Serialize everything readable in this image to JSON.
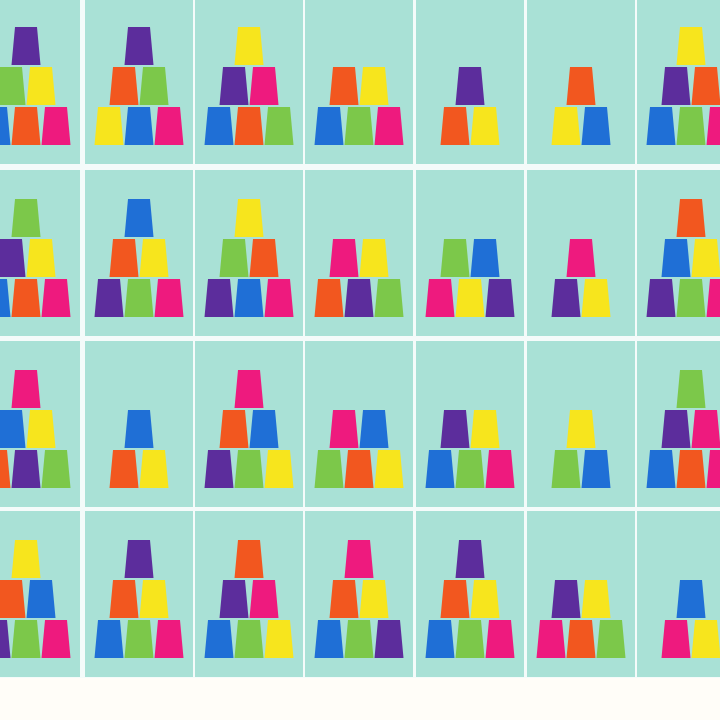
{
  "background": "#a9e1d6",
  "gap_color": "#f4fbfa",
  "cards": [
    [
      [
        "#1f6fd6",
        "#f2571f",
        "#ee1a7e"
      ],
      [
        "#7cc84a",
        "#f7e51d"
      ],
      [
        "#5c2d9c"
      ]
    ],
    [
      [
        "#f7e51d",
        "#1f6fd6",
        "#ee1a7e"
      ],
      [
        "#f2571f",
        "#7cc84a"
      ],
      [
        "#5c2d9c"
      ]
    ],
    [
      [
        "#1f6fd6",
        "#f2571f",
        "#7cc84a"
      ],
      [
        "#5c2d9c",
        "#ee1a7e"
      ],
      [
        "#f7e51d"
      ]
    ],
    [
      [
        "#1f6fd6",
        "#7cc84a",
        "#ee1a7e"
      ],
      [
        "#f2571f",
        "#f7e51d"
      ]
    ],
    [
      [
        "#f2571f",
        "#f7e51d"
      ],
      [
        "#5c2d9c"
      ]
    ],
    [
      [
        "#f7e51d",
        "#1f6fd6"
      ],
      [
        "#f2571f"
      ]
    ],
    [
      [
        "#1f6fd6",
        "#7cc84a",
        "#ee1a7e"
      ],
      [
        "#5c2d9c",
        "#f2571f"
      ],
      [
        "#f7e51d"
      ]
    ],
    [
      [
        "#1f6fd6",
        "#f2571f",
        "#ee1a7e"
      ],
      [
        "#5c2d9c",
        "#f7e51d"
      ],
      [
        "#7cc84a"
      ]
    ],
    [
      [
        "#5c2d9c",
        "#7cc84a",
        "#ee1a7e"
      ],
      [
        "#f2571f",
        "#f7e51d"
      ],
      [
        "#1f6fd6"
      ]
    ],
    [
      [
        "#5c2d9c",
        "#1f6fd6",
        "#ee1a7e"
      ],
      [
        "#7cc84a",
        "#f2571f"
      ],
      [
        "#f7e51d"
      ]
    ],
    [
      [
        "#f2571f",
        "#5c2d9c",
        "#7cc84a"
      ],
      [
        "#ee1a7e",
        "#f7e51d"
      ]
    ],
    [
      [
        "#ee1a7e",
        "#f7e51d",
        "#5c2d9c"
      ],
      [
        "#7cc84a",
        "#1f6fd6"
      ]
    ],
    [
      [
        "#5c2d9c",
        "#f7e51d"
      ],
      [
        "#ee1a7e"
      ]
    ],
    [
      [
        "#5c2d9c",
        "#7cc84a",
        "#ee1a7e"
      ],
      [
        "#1f6fd6",
        "#f7e51d"
      ],
      [
        "#f2571f"
      ]
    ],
    [
      [
        "#f2571f",
        "#5c2d9c",
        "#7cc84a"
      ],
      [
        "#1f6fd6",
        "#f7e51d"
      ],
      [
        "#ee1a7e"
      ]
    ],
    [
      [
        "#f2571f",
        "#f7e51d"
      ],
      [
        "#1f6fd6"
      ]
    ],
    [
      [
        "#5c2d9c",
        "#7cc84a",
        "#f7e51d"
      ],
      [
        "#f2571f",
        "#1f6fd6"
      ],
      [
        "#ee1a7e"
      ]
    ],
    [
      [
        "#7cc84a",
        "#f2571f",
        "#f7e51d"
      ],
      [
        "#ee1a7e",
        "#1f6fd6"
      ]
    ],
    [
      [
        "#1f6fd6",
        "#7cc84a",
        "#ee1a7e"
      ],
      [
        "#5c2d9c",
        "#f7e51d"
      ]
    ],
    [
      [
        "#7cc84a",
        "#1f6fd6"
      ],
      [
        "#f7e51d"
      ]
    ],
    [
      [
        "#1f6fd6",
        "#f2571f",
        "#ee1a7e"
      ],
      [
        "#5c2d9c",
        "#ee1a7e"
      ],
      [
        "#7cc84a"
      ]
    ],
    [
      [
        "#5c2d9c",
        "#7cc84a",
        "#ee1a7e"
      ],
      [
        "#f2571f",
        "#1f6fd6"
      ],
      [
        "#f7e51d"
      ]
    ],
    [
      [
        "#1f6fd6",
        "#7cc84a",
        "#ee1a7e"
      ],
      [
        "#f2571f",
        "#f7e51d"
      ],
      [
        "#5c2d9c"
      ]
    ],
    [
      [
        "#1f6fd6",
        "#7cc84a",
        "#f7e51d"
      ],
      [
        "#5c2d9c",
        "#ee1a7e"
      ],
      [
        "#f2571f"
      ]
    ],
    [
      [
        "#1f6fd6",
        "#7cc84a",
        "#5c2d9c"
      ],
      [
        "#f2571f",
        "#f7e51d"
      ],
      [
        "#ee1a7e"
      ]
    ],
    [
      [
        "#1f6fd6",
        "#7cc84a",
        "#ee1a7e"
      ],
      [
        "#f2571f",
        "#f7e51d"
      ],
      [
        "#5c2d9c"
      ]
    ],
    [
      [
        "#ee1a7e",
        "#f2571f",
        "#7cc84a"
      ],
      [
        "#5c2d9c",
        "#f7e51d"
      ]
    ],
    [
      [
        "#ee1a7e",
        "#f7e51d"
      ],
      [
        "#1f6fd6"
      ]
    ]
  ]
}
